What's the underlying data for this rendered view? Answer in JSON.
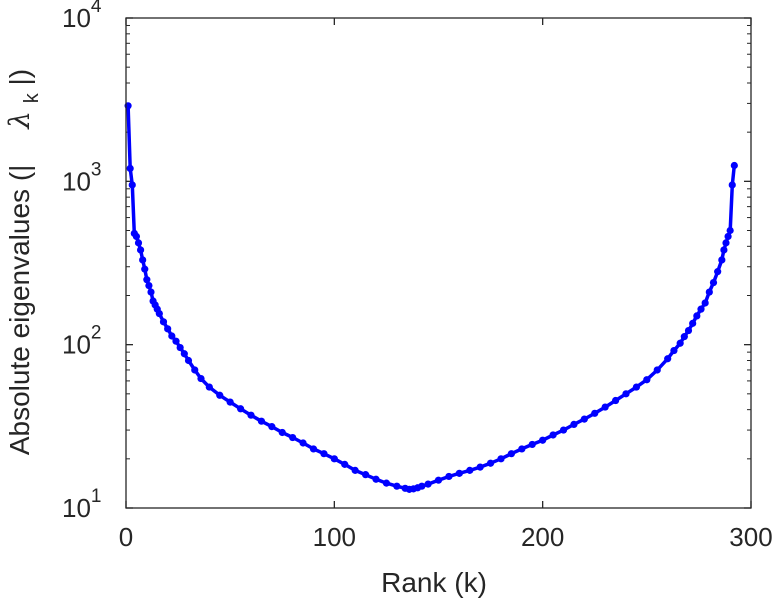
{
  "chart_data": {
    "type": "line",
    "title": "",
    "xlabel": "Rank (k)",
    "ylabel": "Absolute eigenvalues (|λk|)",
    "ylabel_parts": {
      "prefix": "Absolute eigenvalues (|",
      "symbol": "λ",
      "subscript": "k",
      "suffix": "|)"
    },
    "xscale": "linear",
    "yscale": "log",
    "xlim": [
      0,
      300
    ],
    "ylim": [
      10,
      10000
    ],
    "x_ticks": [
      {
        "value": 0,
        "label": "0"
      },
      {
        "value": 100,
        "label": "100"
      },
      {
        "value": 200,
        "label": "200"
      },
      {
        "value": 300,
        "label": "300"
      }
    ],
    "y_ticks": [
      {
        "value": 10,
        "base": "10",
        "exp": "1"
      },
      {
        "value": 100,
        "base": "10",
        "exp": "2"
      },
      {
        "value": 1000,
        "base": "10",
        "exp": "3"
      },
      {
        "value": 10000,
        "base": "10",
        "exp": "4"
      }
    ],
    "grid": false,
    "legend": "none",
    "marker": "filled-circle",
    "color": "#0000ff",
    "series": [
      {
        "x": [
          1,
          2,
          3,
          4,
          5,
          6,
          7,
          8,
          9,
          10,
          11,
          12,
          13,
          14,
          15,
          16,
          18,
          20,
          22,
          24,
          26,
          28,
          30,
          33,
          36,
          40,
          45,
          50,
          55,
          60,
          65,
          70,
          75,
          80,
          85,
          90,
          95,
          100,
          105,
          110,
          115,
          120,
          125,
          130,
          134,
          136,
          138,
          140,
          142,
          145,
          150,
          155,
          160,
          165,
          170,
          175,
          180,
          185,
          190,
          195,
          200,
          205,
          210,
          215,
          220,
          225,
          230,
          235,
          240,
          245,
          250,
          255,
          260,
          263,
          266,
          268,
          270,
          272,
          274,
          276,
          278,
          280,
          282,
          284,
          286,
          287,
          288,
          289,
          290,
          291,
          292
        ],
        "y": [
          2900,
          1200,
          950,
          480,
          460,
          420,
          380,
          330,
          290,
          250,
          230,
          210,
          185,
          175,
          165,
          155,
          138,
          125,
          113,
          105,
          96,
          88,
          80,
          70,
          62,
          55,
          49,
          44.5,
          40.5,
          37,
          34,
          31.5,
          29,
          27,
          25,
          23,
          21.5,
          20,
          18.5,
          17,
          16,
          15,
          14.2,
          13.6,
          13.2,
          13.0,
          13.1,
          13.3,
          13.6,
          14,
          14.8,
          15.6,
          16.3,
          17,
          17.8,
          18.8,
          20,
          21.5,
          23,
          24.5,
          26,
          28,
          30,
          32.5,
          35,
          38,
          41.5,
          45.5,
          50,
          55,
          61,
          70,
          82,
          92,
          102,
          112,
          122,
          135,
          150,
          165,
          180,
          210,
          240,
          280,
          330,
          380,
          420,
          460,
          500,
          950,
          1250
        ]
      }
    ]
  }
}
